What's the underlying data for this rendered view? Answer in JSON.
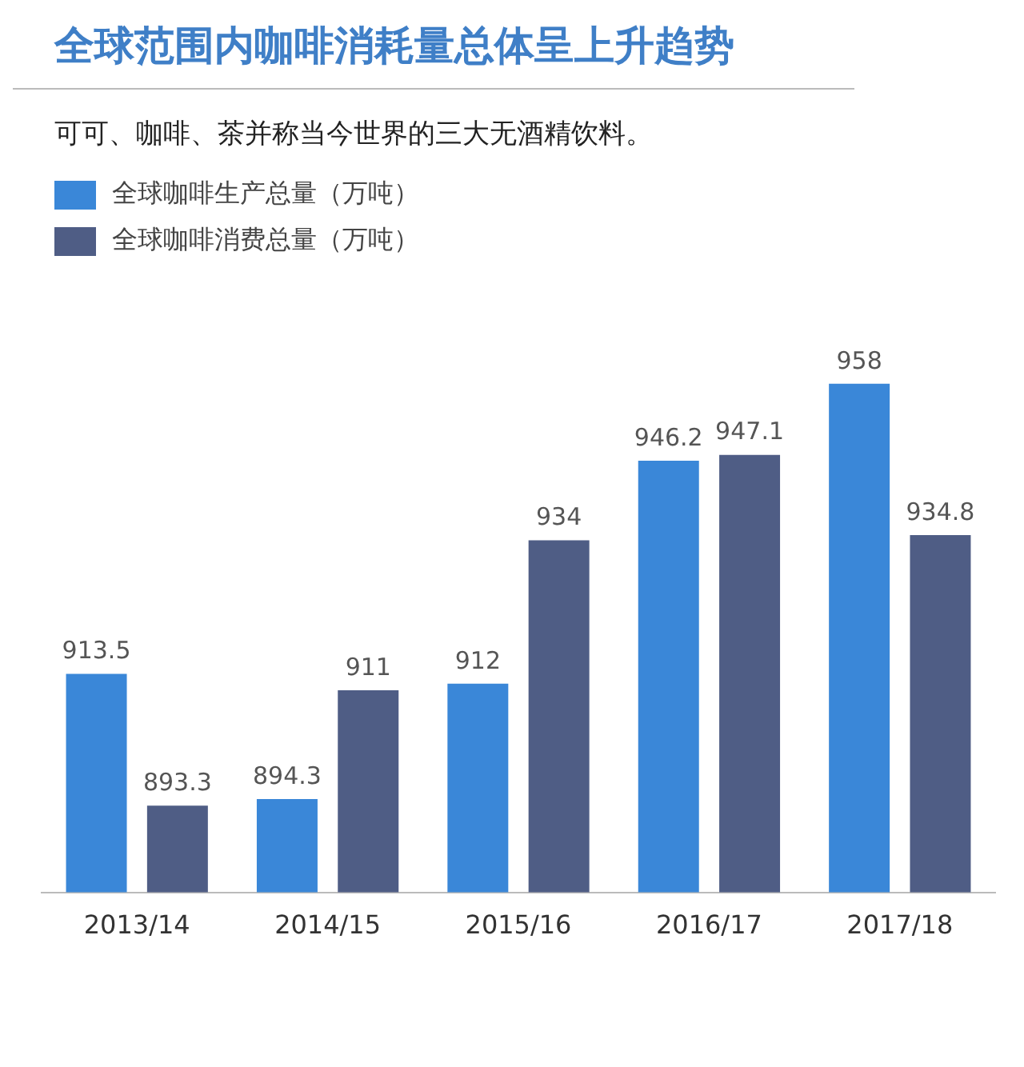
{
  "chart_data": {
    "type": "bar",
    "title": "全球范围内咖啡消耗量总体呈上升趋势",
    "subtitle": "可可、咖啡、茶并称当今世界的三大无酒精饮料。",
    "categories": [
      "2013/14",
      "2014/15",
      "2015/16",
      "2016/17",
      "2017/18"
    ],
    "series": [
      {
        "name": "全球咖啡生产总量（万吨）",
        "color": "#3a87d8",
        "values": [
          913.5,
          894.3,
          912,
          946.2,
          958
        ]
      },
      {
        "name": "全球咖啡消费总量（万吨）",
        "color": "#4f5d85",
        "values": [
          893.3,
          911,
          934,
          947.1,
          934.8
        ]
      }
    ],
    "tick_labels": "x",
    "data_labels": true,
    "legend": "top left",
    "grid": false
  }
}
